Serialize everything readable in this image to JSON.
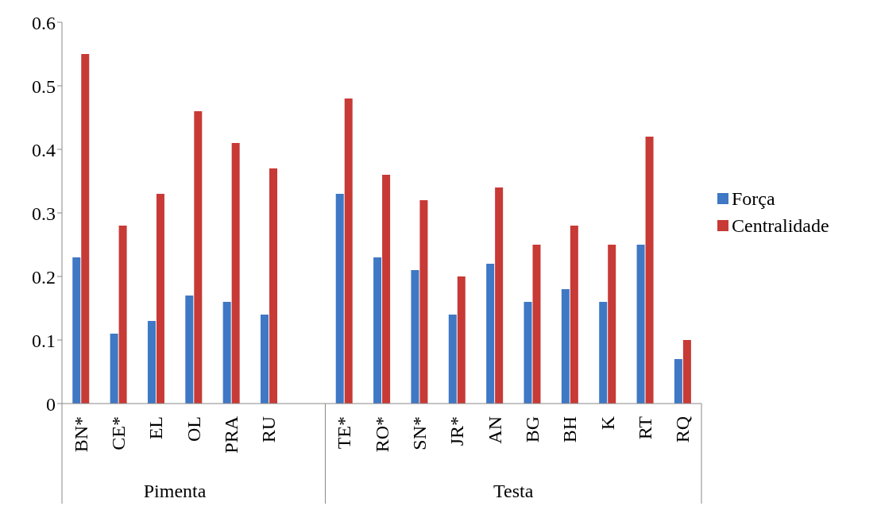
{
  "chart_data": {
    "type": "bar",
    "categories": [
      "BN*",
      "CE*",
      "EL",
      "OL",
      "PRA",
      "RU",
      null,
      "TE*",
      "RO*",
      "SN*",
      "JR*",
      "AN",
      "BG",
      "BH",
      "K",
      "RT",
      "RQ"
    ],
    "series": [
      {
        "name": "Força",
        "color": "#3f78c4",
        "values": [
          0.23,
          0.11,
          0.13,
          0.17,
          0.16,
          0.14,
          null,
          0.33,
          0.23,
          0.21,
          0.14,
          0.22,
          0.16,
          0.18,
          0.16,
          0.25,
          0.07
        ]
      },
      {
        "name": "Centralidade",
        "color": "#c73a36",
        "values": [
          0.55,
          0.28,
          0.33,
          0.46,
          0.41,
          0.37,
          null,
          0.48,
          0.36,
          0.32,
          0.2,
          0.34,
          0.25,
          0.28,
          0.25,
          0.42,
          0.1
        ]
      }
    ],
    "ylim": [
      0,
      0.6
    ],
    "yticks": [
      0,
      0.1,
      0.2,
      0.3,
      0.4,
      0.5,
      0.6
    ],
    "grid": false,
    "legend": "right",
    "annotations": [
      "Pimenta",
      "Testa"
    ]
  }
}
